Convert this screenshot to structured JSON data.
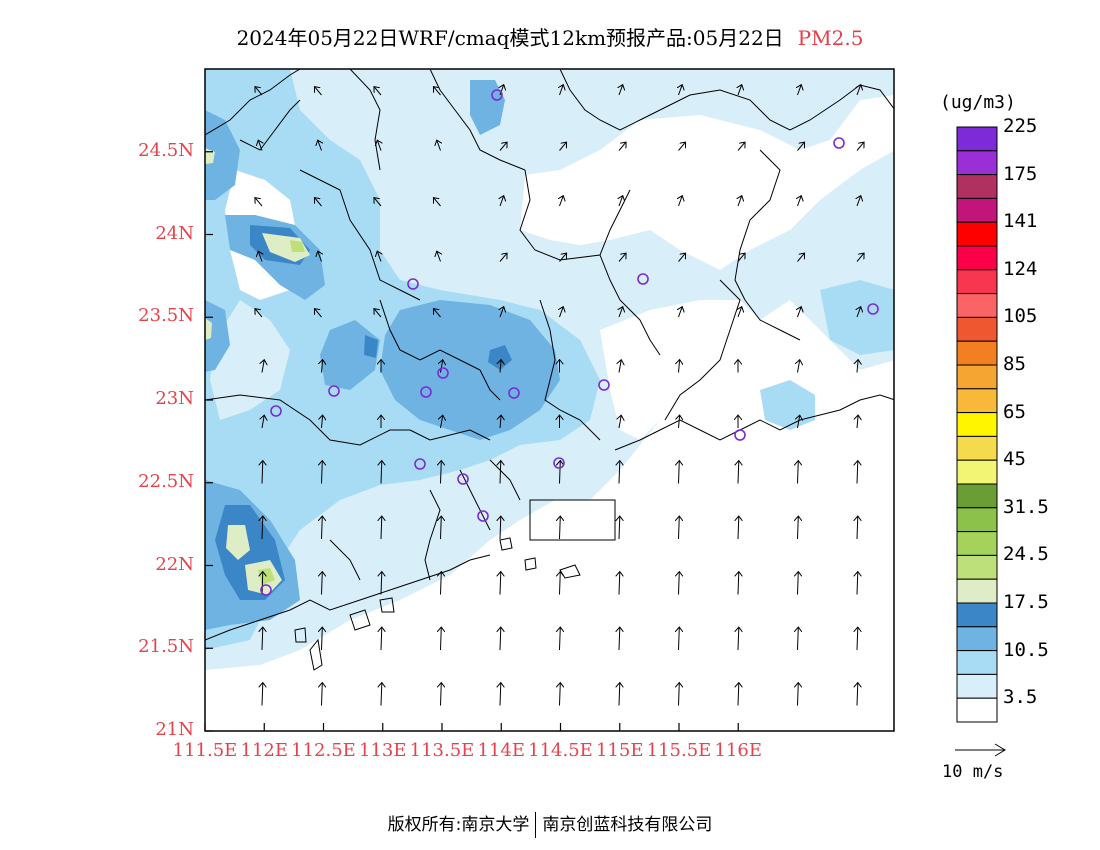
{
  "title": {
    "main": "2024年05月22日WRF/cmaq模式12km预报产品:05月22日",
    "pollutant": "PM2.5"
  },
  "axes": {
    "lat_labels": [
      "24.5N",
      "24N",
      "23.5N",
      "23N",
      "22.5N",
      "22N",
      "21.5N",
      "21N"
    ],
    "lon_labels": [
      "111.5E",
      "112E",
      "112.5E",
      "113E",
      "113.5E",
      "114E",
      "114.5E",
      "115E",
      "115.5E",
      "116E"
    ]
  },
  "colorbar": {
    "units": "(ug/m3)",
    "colors": [
      "#ffffff",
      "#d8eef9",
      "#a8dcf4",
      "#6fb3e2",
      "#3b86c6",
      "#dfedc6",
      "#bee07a",
      "#a5d25a",
      "#8cc249",
      "#6a9e34",
      "#f2f573",
      "#f5da4e",
      "#fff500",
      "#f8b93a",
      "#f5a532",
      "#f38020",
      "#ee5730",
      "#fb6464",
      "#f9364f",
      "#f90049",
      "#ff0000",
      "#c2157a",
      "#b03060",
      "#9b2fd6",
      "#7d2ad8"
    ],
    "labels": [
      "3.5",
      "10.5",
      "17.5",
      "24.5",
      "31.5",
      "45",
      "65",
      "85",
      "105",
      "124",
      "141",
      "175",
      "225"
    ]
  },
  "wind_reference": "10 m/s",
  "footer": {
    "left": "版权所有:南京大学",
    "right": "南京创蓝科技有限公司"
  },
  "colors": {
    "label_red": "#e8414a",
    "station_marker": "#7b2bd6",
    "light_blue": "#d8eef9",
    "mid_blue": "#a8dcf4",
    "blue": "#6fb3e2",
    "dark_blue": "#3b86c6",
    "pale_green": "#dfedc6"
  }
}
